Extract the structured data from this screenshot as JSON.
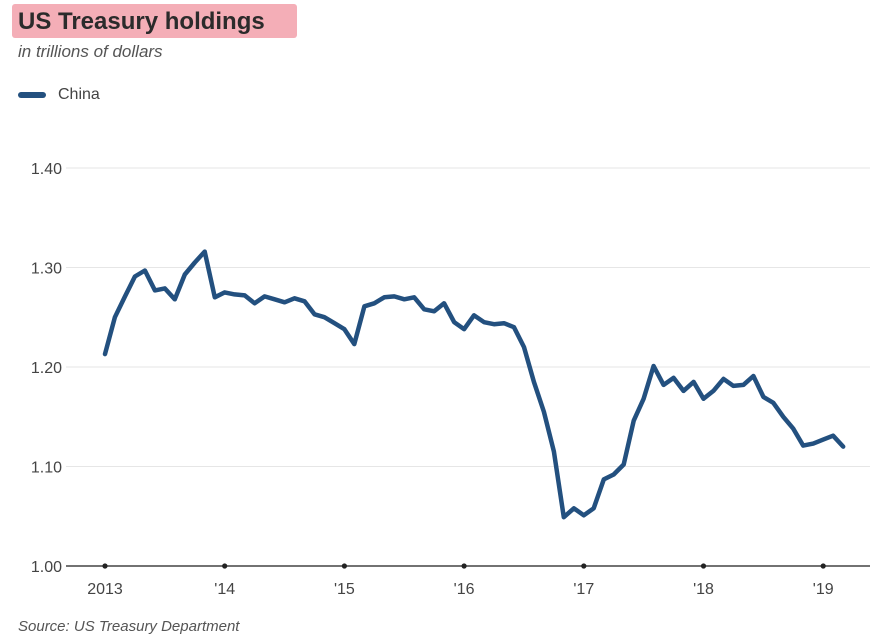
{
  "chart_data": {
    "type": "line",
    "title": "US Treasury holdings",
    "subtitle": "in trillions of dollars",
    "source": "Source: US Treasury Department",
    "color": "#23507f",
    "legend": {
      "placement": "top-left",
      "entries": [
        "China"
      ]
    },
    "grid": true,
    "ylim": [
      1.0,
      1.4
    ],
    "yticks": [
      1.0,
      1.1,
      1.2,
      1.3,
      1.4
    ],
    "ytick_labels": [
      "1.00",
      "1.10",
      "1.20",
      "1.30",
      "1.40"
    ],
    "xticks": [
      2013,
      2014,
      2015,
      2016,
      2017,
      2018,
      2019
    ],
    "xtick_labels": [
      "2013",
      "'14",
      "'15",
      "'16",
      "'17",
      "'18",
      "'19"
    ],
    "series": [
      {
        "name": "China",
        "x": [
          2013.0,
          2013.083,
          2013.167,
          2013.25,
          2013.333,
          2013.417,
          2013.5,
          2013.583,
          2013.667,
          2013.75,
          2013.833,
          2013.917,
          2014.0,
          2014.083,
          2014.167,
          2014.25,
          2014.333,
          2014.417,
          2014.5,
          2014.583,
          2014.667,
          2014.75,
          2014.833,
          2014.917,
          2015.0,
          2015.083,
          2015.167,
          2015.25,
          2015.333,
          2015.417,
          2015.5,
          2015.583,
          2015.667,
          2015.75,
          2015.833,
          2015.917,
          2016.0,
          2016.083,
          2016.167,
          2016.25,
          2016.333,
          2016.417,
          2016.5,
          2016.583,
          2016.667,
          2016.75,
          2016.833,
          2016.917,
          2017.0,
          2017.083,
          2017.167,
          2017.25,
          2017.333,
          2017.417,
          2017.5,
          2017.583,
          2017.667,
          2017.75,
          2017.833,
          2017.917,
          2018.0,
          2018.083,
          2018.167,
          2018.25,
          2018.333,
          2018.417,
          2018.5,
          2018.583,
          2018.667,
          2018.75,
          2018.833,
          2018.917,
          2019.0,
          2019.083,
          2019.167
        ],
        "values": [
          1.213,
          1.25,
          1.271,
          1.291,
          1.297,
          1.277,
          1.279,
          1.268,
          1.293,
          1.305,
          1.316,
          1.27,
          1.275,
          1.273,
          1.272,
          1.264,
          1.271,
          1.268,
          1.265,
          1.269,
          1.266,
          1.253,
          1.25,
          1.244,
          1.238,
          1.223,
          1.261,
          1.264,
          1.27,
          1.271,
          1.268,
          1.27,
          1.258,
          1.256,
          1.264,
          1.245,
          1.238,
          1.252,
          1.245,
          1.243,
          1.244,
          1.24,
          1.22,
          1.185,
          1.155,
          1.115,
          1.049,
          1.058,
          1.051,
          1.058,
          1.087,
          1.092,
          1.102,
          1.146,
          1.168,
          1.201,
          1.182,
          1.189,
          1.176,
          1.185,
          1.168,
          1.176,
          1.188,
          1.181,
          1.182,
          1.191,
          1.17,
          1.164,
          1.15,
          1.138,
          1.121,
          1.123,
          1.127,
          1.131,
          1.12
        ]
      }
    ]
  }
}
